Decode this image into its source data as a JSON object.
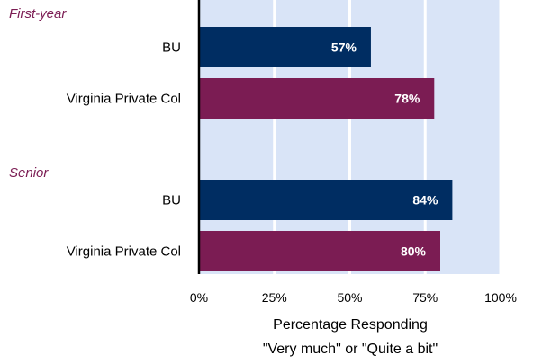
{
  "chart_data": {
    "type": "bar",
    "orientation": "horizontal",
    "groups": [
      {
        "label": "First-year",
        "bars": [
          {
            "category": "BU",
            "value": 57,
            "label": "57%",
            "color": "#002d62"
          },
          {
            "category": "Virginia Private Col",
            "value": 78,
            "label": "78%",
            "color": "#7b1c53"
          }
        ]
      },
      {
        "label": "Senior",
        "bars": [
          {
            "category": "BU",
            "value": 84,
            "label": "84%",
            "color": "#002d62"
          },
          {
            "category": "Virginia Private Col",
            "value": 80,
            "label": "80%",
            "color": "#7b1c53"
          }
        ]
      }
    ],
    "xlim": [
      0,
      100
    ],
    "xticks": [
      0,
      25,
      50,
      75,
      100
    ],
    "xtick_labels": [
      "0%",
      "25%",
      "50%",
      "75%",
      "100%"
    ],
    "xlabel_line1": "Percentage Responding",
    "xlabel_line2": "\"Very much\" or \"Quite a bit\"",
    "grid": "vertical",
    "colors": {
      "plot_background": "#d9e4f7",
      "gridline": "#ffffff",
      "bu": "#002d62",
      "virginia_private": "#7b1c53",
      "group_label": "#7b1c53"
    }
  }
}
